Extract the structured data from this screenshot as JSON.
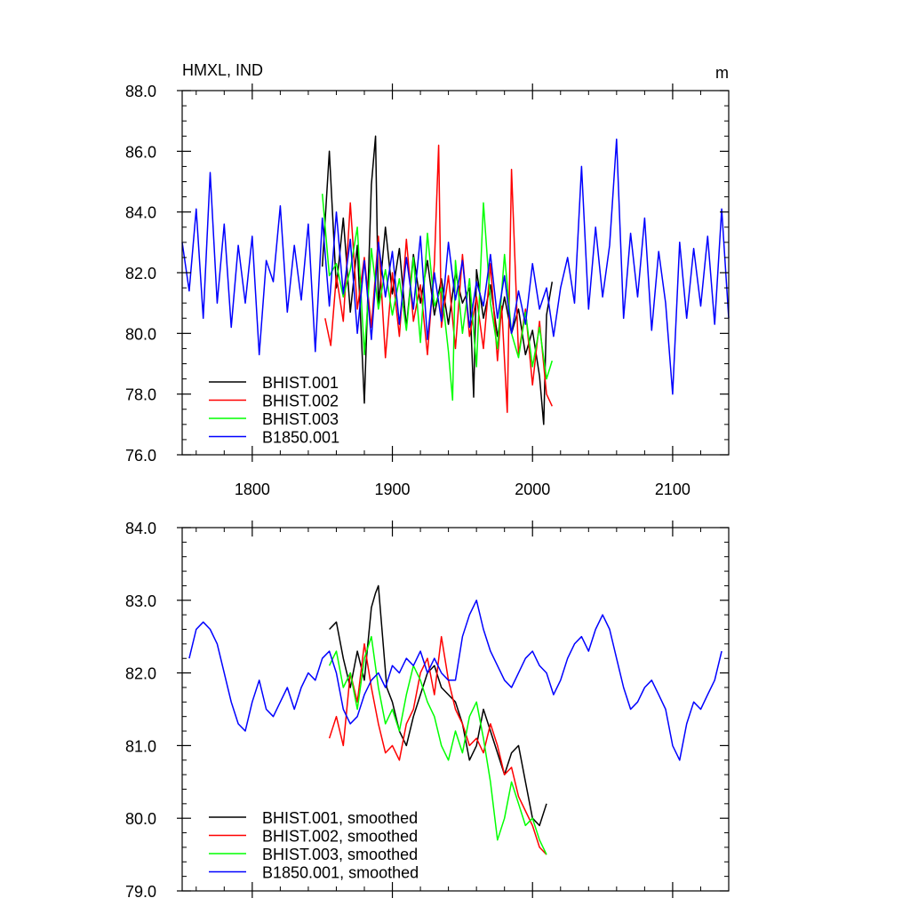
{
  "chart_data": [
    {
      "type": "line",
      "title": "HMXL, IND",
      "units": "m",
      "xlabel": "",
      "ylabel": "",
      "xlim": [
        1750,
        2140
      ],
      "ylim": [
        76.0,
        88.0
      ],
      "x_ticks": [
        1800,
        1900,
        2000,
        2100
      ],
      "y_ticks": [
        76.0,
        78.0,
        80.0,
        82.0,
        84.0,
        86.0,
        88.0
      ],
      "x_tick_labels": [
        "1800",
        "1900",
        "2000",
        "2100"
      ],
      "y_tick_labels": [
        "76.0",
        "78.0",
        "80.0",
        "82.0",
        "84.0",
        "86.0",
        "88.0"
      ],
      "grid": false,
      "legend_position": "bottom-left",
      "series": [
        {
          "name": "BHIST.001",
          "color": "#000000",
          "x": [
            1850,
            1855,
            1860,
            1865,
            1870,
            1875,
            1880,
            1885,
            1888,
            1890,
            1895,
            1900,
            1905,
            1910,
            1915,
            1920,
            1925,
            1930,
            1935,
            1940,
            1945,
            1950,
            1955,
            1958,
            1960,
            1965,
            1970,
            1975,
            1980,
            1985,
            1990,
            1995,
            2000,
            2005,
            2008,
            2010,
            2014
          ],
          "y": [
            82.2,
            86.0,
            81.5,
            83.8,
            80.7,
            82.9,
            77.7,
            84.9,
            86.5,
            80.9,
            83.5,
            81.3,
            82.8,
            80.2,
            82.6,
            81.0,
            82.4,
            80.6,
            81.8,
            80.3,
            82.0,
            81.0,
            81.5,
            77.9,
            82.1,
            80.5,
            81.6,
            79.9,
            81.2,
            80.0,
            80.8,
            79.3,
            80.1,
            78.6,
            77.0,
            80.6,
            81.7
          ]
        },
        {
          "name": "BHIST.002",
          "color": "#ff0000",
          "x": [
            1852,
            1856,
            1860,
            1865,
            1870,
            1875,
            1880,
            1885,
            1890,
            1895,
            1900,
            1905,
            1910,
            1915,
            1920,
            1925,
            1930,
            1933,
            1935,
            1940,
            1945,
            1950,
            1955,
            1960,
            1965,
            1970,
            1975,
            1978,
            1982,
            1985,
            1990,
            1995,
            2000,
            2005,
            2010,
            2014
          ],
          "y": [
            80.5,
            79.6,
            81.9,
            80.4,
            84.3,
            80.8,
            82.5,
            80.2,
            83.2,
            79.2,
            82.0,
            79.9,
            83.1,
            80.4,
            81.6,
            79.3,
            82.3,
            86.2,
            80.2,
            81.9,
            79.5,
            82.6,
            79.9,
            81.2,
            79.5,
            82.3,
            79.1,
            80.9,
            77.4,
            85.4,
            79.3,
            80.8,
            78.3,
            80.4,
            78.0,
            77.6
          ]
        },
        {
          "name": "BHIST.003",
          "color": "#00ff00",
          "x": [
            1850,
            1855,
            1860,
            1865,
            1870,
            1875,
            1880,
            1885,
            1890,
            1895,
            1900,
            1905,
            1910,
            1915,
            1920,
            1925,
            1930,
            1935,
            1940,
            1943,
            1945,
            1950,
            1955,
            1960,
            1965,
            1970,
            1975,
            1980,
            1985,
            1990,
            1995,
            2000,
            2005,
            2010,
            2014
          ],
          "y": [
            84.6,
            81.9,
            82.3,
            81.2,
            82.1,
            83.5,
            79.3,
            82.8,
            80.8,
            82.1,
            80.6,
            81.8,
            80.1,
            82.5,
            79.7,
            83.3,
            80.9,
            81.5,
            79.4,
            77.8,
            82.4,
            80.0,
            81.8,
            78.9,
            84.3,
            81.0,
            79.5,
            82.6,
            80.0,
            79.2,
            80.7,
            78.9,
            80.2,
            78.5,
            79.1
          ]
        },
        {
          "name": "B1850.001",
          "color": "#0000ff",
          "x": [
            1750,
            1755,
            1760,
            1765,
            1770,
            1775,
            1780,
            1785,
            1790,
            1795,
            1800,
            1805,
            1810,
            1815,
            1820,
            1825,
            1830,
            1835,
            1840,
            1845,
            1850,
            1855,
            1860,
            1865,
            1870,
            1875,
            1880,
            1885,
            1890,
            1895,
            1900,
            1905,
            1910,
            1915,
            1920,
            1925,
            1930,
            1935,
            1940,
            1945,
            1950,
            1955,
            1960,
            1965,
            1970,
            1975,
            1980,
            1985,
            1990,
            1995,
            2000,
            2005,
            2010,
            2015,
            2020,
            2025,
            2030,
            2035,
            2040,
            2045,
            2050,
            2055,
            2060,
            2065,
            2070,
            2075,
            2080,
            2085,
            2090,
            2095,
            2100,
            2105,
            2110,
            2115,
            2120,
            2125,
            2130,
            2135,
            2140
          ],
          "y": [
            83.0,
            81.4,
            84.1,
            80.5,
            85.3,
            81.0,
            83.6,
            80.2,
            82.9,
            81.0,
            83.2,
            79.3,
            82.4,
            81.7,
            84.2,
            80.7,
            82.9,
            81.1,
            83.6,
            79.4,
            83.8,
            80.9,
            84.0,
            81.3,
            83.1,
            80.0,
            82.4,
            79.8,
            83.0,
            81.2,
            82.7,
            80.3,
            82.5,
            80.8,
            83.2,
            79.8,
            82.0,
            80.4,
            83.0,
            81.1,
            82.4,
            80.2,
            81.7,
            80.9,
            82.6,
            80.5,
            81.9,
            80.0,
            81.4,
            80.3,
            82.3,
            80.8,
            81.5,
            79.9,
            81.5,
            82.5,
            81.0,
            85.5,
            80.8,
            83.5,
            81.2,
            82.9,
            86.4,
            80.5,
            83.3,
            81.2,
            83.8,
            80.1,
            82.7,
            81.0,
            78.0,
            83.0,
            80.5,
            82.8,
            80.9,
            83.2,
            80.3,
            84.1,
            80.5
          ]
        }
      ],
      "legend": [
        "BHIST.001",
        "BHIST.002",
        "BHIST.003",
        "B1850.001"
      ]
    },
    {
      "type": "line",
      "title": "",
      "xlabel": "",
      "ylabel": "",
      "xlim": [
        1750,
        2140
      ],
      "ylim": [
        79.0,
        84.0
      ],
      "x_ticks": [
        1800,
        1900,
        2000,
        2100
      ],
      "y_ticks": [
        79.0,
        80.0,
        81.0,
        82.0,
        83.0,
        84.0
      ],
      "x_tick_labels": [],
      "y_tick_labels": [
        "79.0",
        "80.0",
        "81.0",
        "82.0",
        "83.0",
        "84.0"
      ],
      "grid": false,
      "legend_position": "bottom-left",
      "series": [
        {
          "name": "BHIST.001, smoothed",
          "color": "#000000",
          "x": [
            1855,
            1860,
            1865,
            1870,
            1875,
            1880,
            1885,
            1888,
            1890,
            1893,
            1896,
            1900,
            1905,
            1910,
            1915,
            1920,
            1925,
            1930,
            1935,
            1940,
            1945,
            1950,
            1955,
            1960,
            1965,
            1970,
            1975,
            1980,
            1985,
            1990,
            1995,
            2000,
            2005,
            2010
          ],
          "y": [
            82.6,
            82.7,
            82.2,
            81.8,
            82.3,
            81.9,
            82.9,
            83.1,
            83.2,
            82.5,
            81.8,
            81.6,
            81.2,
            81.0,
            81.4,
            81.7,
            82.0,
            82.1,
            81.8,
            81.7,
            81.6,
            81.3,
            80.8,
            81.0,
            81.5,
            81.2,
            80.9,
            80.6,
            80.9,
            81.0,
            80.5,
            80.0,
            79.9,
            80.2
          ]
        },
        {
          "name": "BHIST.002, smoothed",
          "color": "#ff0000",
          "x": [
            1855,
            1860,
            1865,
            1870,
            1875,
            1880,
            1885,
            1890,
            1895,
            1900,
            1905,
            1910,
            1915,
            1920,
            1925,
            1930,
            1935,
            1940,
            1945,
            1950,
            1955,
            1960,
            1965,
            1970,
            1975,
            1980,
            1985,
            1990,
            1995,
            2000,
            2005,
            2010
          ],
          "y": [
            81.1,
            81.4,
            81.0,
            82.0,
            81.6,
            82.4,
            81.8,
            81.3,
            80.9,
            81.0,
            80.8,
            81.3,
            81.5,
            82.0,
            82.2,
            81.7,
            82.5,
            81.9,
            81.5,
            81.3,
            81.0,
            81.1,
            80.9,
            81.3,
            81.0,
            80.6,
            80.7,
            80.3,
            80.1,
            79.9,
            79.6,
            79.5
          ]
        },
        {
          "name": "BHIST.003, smoothed",
          "color": "#00ff00",
          "x": [
            1855,
            1860,
            1865,
            1870,
            1875,
            1880,
            1885,
            1890,
            1895,
            1900,
            1905,
            1910,
            1915,
            1920,
            1925,
            1930,
            1935,
            1940,
            1945,
            1950,
            1955,
            1960,
            1965,
            1970,
            1975,
            1980,
            1985,
            1990,
            1995,
            2000,
            2005,
            2010
          ],
          "y": [
            82.1,
            82.3,
            81.8,
            82.0,
            81.5,
            82.2,
            82.5,
            81.8,
            81.3,
            81.5,
            81.2,
            81.7,
            82.1,
            81.9,
            81.6,
            81.4,
            81.0,
            80.8,
            81.2,
            80.9,
            81.4,
            81.6,
            81.1,
            80.5,
            79.7,
            80.0,
            80.5,
            80.2,
            79.9,
            80.0,
            79.7,
            79.5
          ]
        },
        {
          "name": "B1850.001, smoothed",
          "color": "#0000ff",
          "x": [
            1755,
            1760,
            1765,
            1770,
            1775,
            1780,
            1785,
            1790,
            1795,
            1800,
            1805,
            1810,
            1815,
            1820,
            1825,
            1830,
            1835,
            1840,
            1845,
            1850,
            1855,
            1860,
            1865,
            1870,
            1875,
            1880,
            1885,
            1890,
            1895,
            1900,
            1905,
            1910,
            1915,
            1920,
            1925,
            1930,
            1935,
            1940,
            1945,
            1950,
            1955,
            1960,
            1965,
            1970,
            1975,
            1980,
            1985,
            1990,
            1995,
            2000,
            2005,
            2010,
            2015,
            2020,
            2025,
            2030,
            2035,
            2040,
            2045,
            2050,
            2055,
            2060,
            2065,
            2070,
            2075,
            2080,
            2085,
            2090,
            2095,
            2100,
            2105,
            2110,
            2115,
            2120,
            2125,
            2130,
            2135
          ],
          "y": [
            82.2,
            82.6,
            82.7,
            82.6,
            82.4,
            82.0,
            81.6,
            81.3,
            81.2,
            81.6,
            81.9,
            81.5,
            81.4,
            81.6,
            81.8,
            81.5,
            81.8,
            82.0,
            81.9,
            82.2,
            82.3,
            82.0,
            81.5,
            81.3,
            81.4,
            81.7,
            81.9,
            82.0,
            81.8,
            82.1,
            82.0,
            82.2,
            82.1,
            82.3,
            82.0,
            82.2,
            82.0,
            81.9,
            81.9,
            82.5,
            82.8,
            83.0,
            82.6,
            82.3,
            82.1,
            81.9,
            81.8,
            82.0,
            82.2,
            82.3,
            82.1,
            82.0,
            81.7,
            81.9,
            82.2,
            82.4,
            82.5,
            82.3,
            82.6,
            82.8,
            82.6,
            82.2,
            81.8,
            81.5,
            81.6,
            81.8,
            81.9,
            81.7,
            81.5,
            81.0,
            80.8,
            81.3,
            81.6,
            81.5,
            81.7,
            81.9,
            82.3
          ]
        }
      ],
      "legend": [
        "BHIST.001, smoothed",
        "BHIST.002, smoothed",
        "BHIST.003, smoothed",
        "B1850.001, smoothed"
      ]
    }
  ]
}
